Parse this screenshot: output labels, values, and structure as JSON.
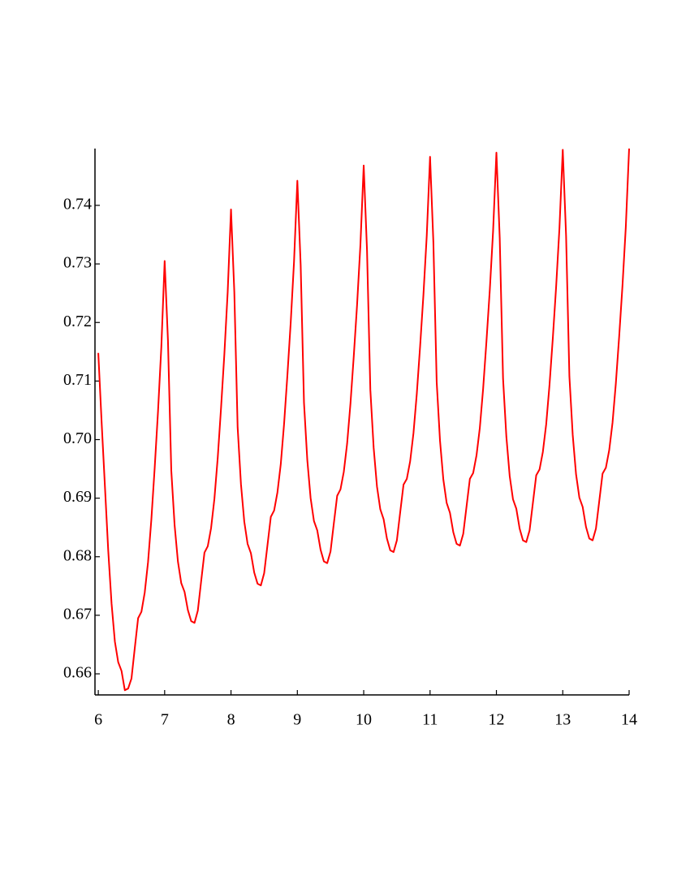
{
  "chart_data": {
    "type": "line",
    "x": [
      6,
      6.05,
      6.1,
      6.15,
      6.2,
      6.25,
      6.3,
      6.35,
      6.4,
      6.45,
      6.5,
      6.55,
      6.6,
      6.65,
      6.7,
      6.75,
      6.8,
      6.85,
      6.9,
      6.95,
      7,
      7.05,
      7.1,
      7.15,
      7.2,
      7.25,
      7.3,
      7.35,
      7.4,
      7.45,
      7.5,
      7.55,
      7.6,
      7.65,
      7.7,
      7.75,
      7.8,
      7.85,
      7.9,
      7.95,
      8,
      8.05,
      8.1,
      8.15,
      8.2,
      8.25,
      8.3,
      8.35,
      8.4,
      8.45,
      8.5,
      8.55,
      8.6,
      8.65,
      8.7,
      8.75,
      8.8,
      8.85,
      8.9,
      8.95,
      9,
      9.05,
      9.1,
      9.15,
      9.2,
      9.25,
      9.3,
      9.35,
      9.4,
      9.45,
      9.5,
      9.55,
      9.6,
      9.65,
      9.7,
      9.75,
      9.8,
      9.85,
      9.9,
      9.95,
      10,
      10.05,
      10.1,
      10.15,
      10.2,
      10.25,
      10.3,
      10.35,
      10.4,
      10.45,
      10.5,
      10.55,
      10.6,
      10.65,
      10.7,
      10.75,
      10.8,
      10.85,
      10.9,
      10.95,
      11,
      11.05,
      11.1,
      11.15,
      11.2,
      11.25,
      11.3,
      11.35,
      11.4,
      11.45,
      11.5,
      11.55,
      11.6,
      11.65,
      11.7,
      11.75,
      11.8,
      11.85,
      11.9,
      11.95,
      12,
      12.05,
      12.1,
      12.15,
      12.2,
      12.25,
      12.3,
      12.35,
      12.4,
      12.45,
      12.5,
      12.55,
      12.6,
      12.65,
      12.7,
      12.75,
      12.8,
      12.85,
      12.9,
      12.95,
      13,
      13.05,
      13.1,
      13.15,
      13.2,
      13.25,
      13.3,
      13.35,
      13.4,
      13.45,
      13.5,
      13.55,
      13.6,
      13.65,
      13.7,
      13.75,
      13.8,
      13.85,
      13.9,
      13.95,
      14
    ],
    "series": [
      {
        "color": "#ff0000",
        "values": [
          0.7148,
          0.703,
          0.692,
          0.681,
          0.672,
          0.6655,
          0.662,
          0.6605,
          0.6572,
          0.6575,
          0.6592,
          0.6644,
          0.6695,
          0.6706,
          0.6739,
          0.6791,
          0.6864,
          0.6952,
          0.7048,
          0.7158,
          0.7305,
          0.7169,
          0.6947,
          0.6854,
          0.6792,
          0.6755,
          0.674,
          0.6709,
          0.669,
          0.6687,
          0.6708,
          0.6758,
          0.6807,
          0.6818,
          0.6849,
          0.6899,
          0.6969,
          0.7054,
          0.7146,
          0.7252,
          0.7393,
          0.7252,
          0.7021,
          0.6924,
          0.686,
          0.6822,
          0.6806,
          0.6773,
          0.6754,
          0.6751,
          0.6772,
          0.682,
          0.6868,
          0.6879,
          0.691,
          0.6958,
          0.7027,
          0.711,
          0.72,
          0.7304,
          0.7442,
          0.7298,
          0.7063,
          0.6965,
          0.69,
          0.6861,
          0.6845,
          0.6812,
          0.6792,
          0.6789,
          0.6809,
          0.6857,
          0.6904,
          0.6915,
          0.6945,
          0.6993,
          0.7061,
          0.7142,
          0.723,
          0.7332,
          0.7468,
          0.7323,
          0.7085,
          0.6986,
          0.692,
          0.6881,
          0.6864,
          0.6831,
          0.6811,
          0.6808,
          0.6828,
          0.6876,
          0.6923,
          0.6933,
          0.6963,
          0.7011,
          0.7078,
          0.7159,
          0.7247,
          0.7348,
          0.7483,
          0.7337,
          0.7098,
          0.6998,
          0.6932,
          0.6892,
          0.6875,
          0.6842,
          0.6822,
          0.6819,
          0.6839,
          0.6886,
          0.6933,
          0.6943,
          0.6973,
          0.702,
          0.7087,
          0.7168,
          0.7255,
          0.7356,
          0.749,
          0.7344,
          0.7104,
          0.7005,
          0.6938,
          0.6898,
          0.6882,
          0.6848,
          0.6828,
          0.6825,
          0.6845,
          0.6892,
          0.6939,
          0.6949,
          0.6979,
          0.7026,
          0.7093,
          0.7173,
          0.7261,
          0.7361,
          0.7495,
          0.7348,
          0.7108,
          0.7008,
          0.6941,
          0.6901,
          0.6885,
          0.6851,
          0.6831,
          0.6828,
          0.6848,
          0.6895,
          0.6942,
          0.6952,
          0.6982,
          0.7029,
          0.7096,
          0.7176,
          0.7263,
          0.7363,
          0.7497
        ]
      }
    ],
    "xlim": [
      5.95,
      14
    ],
    "ylim": [
      0.6564,
      0.7497
    ],
    "xticks": [
      6,
      7,
      8,
      9,
      10,
      11,
      12,
      13,
      14
    ],
    "yticks": [
      0.66,
      0.67,
      0.68,
      0.69,
      {
        "value": 0.7,
        "label": "0.70"
      },
      0.71,
      0.72,
      0.73,
      0.74
    ],
    "grid": false
  }
}
